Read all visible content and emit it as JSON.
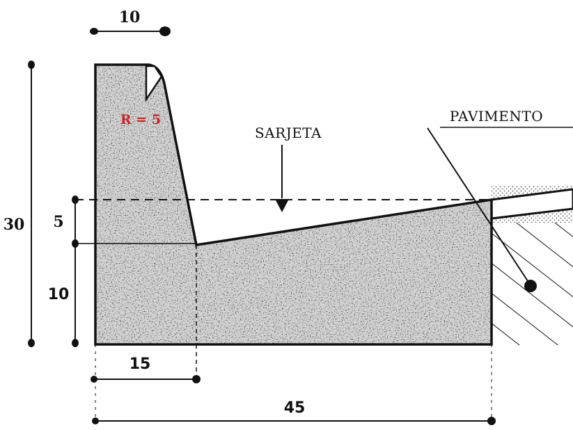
{
  "dimensions": {
    "top_width": "10",
    "total_height": "30",
    "gutter_depth": "5",
    "base_height": "10",
    "gutter_start": "15",
    "total_width": "45"
  },
  "labels": {
    "radius": "R = 5",
    "gutter": "SARJETA",
    "pavement": "PAVIMENTO"
  },
  "colors": {
    "radius_text": "#d42020",
    "concrete_base": "#9a9a9a",
    "line": "#111111"
  }
}
